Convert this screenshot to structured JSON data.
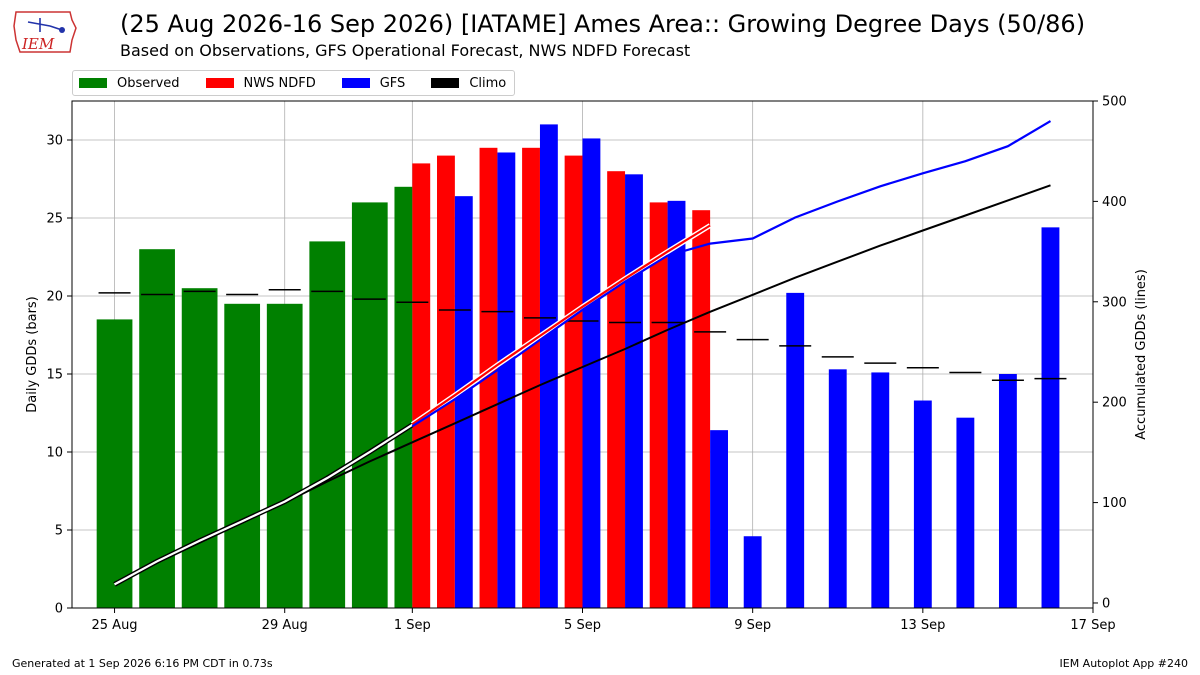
{
  "header": {
    "logo_text": "IEM",
    "title": "(25 Aug 2026-16 Sep 2026) [IATAME] Ames Area:: Growing Degree Days (50/86)",
    "subtitle": "Based on Observations, GFS Operational Forecast, NWS NDFD Forecast"
  },
  "footer": {
    "generated": "Generated at 1 Sep 2026 6:16 PM CDT in 0.73s",
    "app": "IEM Autoplot App #240"
  },
  "colors": {
    "observed": "#008000",
    "ndfd": "#ff0000",
    "gfs": "#0000ff",
    "climo": "#000000",
    "grid": "#b0b0b0"
  },
  "legend": [
    {
      "label": "Observed",
      "color": "#008000"
    },
    {
      "label": "NWS NDFD",
      "color": "#ff0000"
    },
    {
      "label": "GFS",
      "color": "#0000ff"
    },
    {
      "label": "Climo",
      "color": "#000000"
    }
  ],
  "chart_data": {
    "type": "bar",
    "title": "(25 Aug 2026-16 Sep 2026) [IATAME] Ames Area:: Growing Degree Days (50/86)",
    "subtitle": "Based on Observations, GFS Operational Forecast, NWS NDFD Forecast",
    "ylabel": "Daily GDDs (bars)",
    "y2label": "Accumulated GDDs (lines)",
    "ylim": [
      0,
      32.5
    ],
    "y2lim": [
      -5,
      500
    ],
    "yticks": [
      0,
      5,
      10,
      15,
      20,
      25,
      30
    ],
    "y2ticks": [
      0,
      100,
      200,
      300,
      400,
      500
    ],
    "xticks": [
      {
        "date": "2026-08-25",
        "label": "25 Aug"
      },
      {
        "date": "2026-08-29",
        "label": "29 Aug"
      },
      {
        "date": "2026-09-01",
        "label": "1 Sep"
      },
      {
        "date": "2026-09-05",
        "label": "5 Sep"
      },
      {
        "date": "2026-09-09",
        "label": "9 Sep"
      },
      {
        "date": "2026-09-13",
        "label": "13 Sep"
      },
      {
        "date": "2026-09-17",
        "label": "17 Sep"
      }
    ],
    "xlim": [
      "2026-08-24",
      "2026-09-17"
    ],
    "grid": true,
    "legend_position": "top-left",
    "observed": [
      {
        "date": "2026-08-25",
        "value": 18.5
      },
      {
        "date": "2026-08-26",
        "value": 23.0
      },
      {
        "date": "2026-08-27",
        "value": 20.5
      },
      {
        "date": "2026-08-28",
        "value": 19.5
      },
      {
        "date": "2026-08-29",
        "value": 19.5
      },
      {
        "date": "2026-08-30",
        "value": 23.5
      },
      {
        "date": "2026-08-31",
        "value": 26.0
      },
      {
        "date": "2026-09-01",
        "value": 27.0
      }
    ],
    "ndfd": [
      {
        "date": "2026-09-01",
        "value": 28.5
      },
      {
        "date": "2026-09-02",
        "value": 29.0
      },
      {
        "date": "2026-09-03",
        "value": 29.5
      },
      {
        "date": "2026-09-04",
        "value": 29.5
      },
      {
        "date": "2026-09-05",
        "value": 29.0
      },
      {
        "date": "2026-09-06",
        "value": 28.0
      },
      {
        "date": "2026-09-07",
        "value": 26.0
      },
      {
        "date": "2026-09-08",
        "value": 25.5
      }
    ],
    "gfs": [
      {
        "date": "2026-09-02",
        "value": 26.4
      },
      {
        "date": "2026-09-03",
        "value": 29.2
      },
      {
        "date": "2026-09-04",
        "value": 31.0
      },
      {
        "date": "2026-09-05",
        "value": 30.1
      },
      {
        "date": "2026-09-06",
        "value": 27.8
      },
      {
        "date": "2026-09-07",
        "value": 26.1
      },
      {
        "date": "2026-09-08",
        "value": 11.4
      },
      {
        "date": "2026-09-09",
        "value": 4.6
      },
      {
        "date": "2026-09-10",
        "value": 20.2
      },
      {
        "date": "2026-09-11",
        "value": 15.3
      },
      {
        "date": "2026-09-12",
        "value": 15.1
      },
      {
        "date": "2026-09-13",
        "value": 13.3
      },
      {
        "date": "2026-09-14",
        "value": 12.2
      },
      {
        "date": "2026-09-15",
        "value": 15.0
      },
      {
        "date": "2026-09-16",
        "value": 24.4
      }
    ],
    "climo_daily": [
      {
        "date": "2026-08-25",
        "value": 20.2
      },
      {
        "date": "2026-08-26",
        "value": 20.1
      },
      {
        "date": "2026-08-27",
        "value": 20.3
      },
      {
        "date": "2026-08-28",
        "value": 20.1
      },
      {
        "date": "2026-08-29",
        "value": 20.4
      },
      {
        "date": "2026-08-30",
        "value": 20.3
      },
      {
        "date": "2026-08-31",
        "value": 19.8
      },
      {
        "date": "2026-09-01",
        "value": 19.6
      },
      {
        "date": "2026-09-02",
        "value": 19.1
      },
      {
        "date": "2026-09-03",
        "value": 19.0
      },
      {
        "date": "2026-09-04",
        "value": 18.6
      },
      {
        "date": "2026-09-05",
        "value": 18.4
      },
      {
        "date": "2026-09-06",
        "value": 18.3
      },
      {
        "date": "2026-09-07",
        "value": 18.3
      },
      {
        "date": "2026-09-08",
        "value": 17.7
      },
      {
        "date": "2026-09-09",
        "value": 17.2
      },
      {
        "date": "2026-09-10",
        "value": 16.8
      },
      {
        "date": "2026-09-11",
        "value": 16.1
      },
      {
        "date": "2026-09-12",
        "value": 15.7
      },
      {
        "date": "2026-09-13",
        "value": 15.4
      },
      {
        "date": "2026-09-14",
        "value": 15.1
      },
      {
        "date": "2026-09-15",
        "value": 14.6
      },
      {
        "date": "2026-09-16",
        "value": 14.7
      }
    ],
    "observed_accum": [
      {
        "date": "2026-08-25",
        "value": 18.5
      },
      {
        "date": "2026-08-26",
        "value": 41.5
      },
      {
        "date": "2026-08-27",
        "value": 62
      },
      {
        "date": "2026-08-28",
        "value": 81.5
      },
      {
        "date": "2026-08-29",
        "value": 101
      },
      {
        "date": "2026-08-30",
        "value": 124.5
      },
      {
        "date": "2026-08-31",
        "value": 150.5
      },
      {
        "date": "2026-09-01",
        "value": 177.5
      }
    ],
    "ndfd_accum": [
      {
        "date": "2026-09-01",
        "value": 178
      },
      {
        "date": "2026-09-02",
        "value": 207
      },
      {
        "date": "2026-09-03",
        "value": 237
      },
      {
        "date": "2026-09-04",
        "value": 266
      },
      {
        "date": "2026-09-05",
        "value": 295
      },
      {
        "date": "2026-09-06",
        "value": 323
      },
      {
        "date": "2026-09-07",
        "value": 350
      },
      {
        "date": "2026-09-08",
        "value": 376
      }
    ],
    "gfs_accum": [
      {
        "date": "2026-09-01",
        "value": 176
      },
      {
        "date": "2026-09-02",
        "value": 203
      },
      {
        "date": "2026-09-03",
        "value": 232
      },
      {
        "date": "2026-09-04",
        "value": 262
      },
      {
        "date": "2026-09-05",
        "value": 292
      },
      {
        "date": "2026-09-06",
        "value": 320
      },
      {
        "date": "2026-09-07",
        "value": 346
      },
      {
        "date": "2026-09-08",
        "value": 358
      },
      {
        "date": "2026-09-09",
        "value": 363
      },
      {
        "date": "2026-09-10",
        "value": 384
      },
      {
        "date": "2026-09-11",
        "value": 400
      },
      {
        "date": "2026-09-12",
        "value": 415
      },
      {
        "date": "2026-09-13",
        "value": 428
      },
      {
        "date": "2026-09-14",
        "value": 440
      },
      {
        "date": "2026-09-15",
        "value": 455
      },
      {
        "date": "2026-09-16",
        "value": 480
      }
    ],
    "climo_accum": [
      {
        "date": "2026-08-25",
        "value": 20
      },
      {
        "date": "2026-08-26",
        "value": 40
      },
      {
        "date": "2026-08-27",
        "value": 60
      },
      {
        "date": "2026-08-28",
        "value": 80
      },
      {
        "date": "2026-08-29",
        "value": 100
      },
      {
        "date": "2026-08-30",
        "value": 121
      },
      {
        "date": "2026-08-31",
        "value": 141
      },
      {
        "date": "2026-09-01",
        "value": 160
      },
      {
        "date": "2026-09-02",
        "value": 179
      },
      {
        "date": "2026-09-03",
        "value": 198
      },
      {
        "date": "2026-09-04",
        "value": 217
      },
      {
        "date": "2026-09-05",
        "value": 235
      },
      {
        "date": "2026-09-06",
        "value": 253
      },
      {
        "date": "2026-09-07",
        "value": 272
      },
      {
        "date": "2026-09-08",
        "value": 290
      },
      {
        "date": "2026-09-09",
        "value": 307
      },
      {
        "date": "2026-09-10",
        "value": 324
      },
      {
        "date": "2026-09-11",
        "value": 340
      },
      {
        "date": "2026-09-12",
        "value": 356
      },
      {
        "date": "2026-09-13",
        "value": 371
      },
      {
        "date": "2026-09-14",
        "value": 386
      },
      {
        "date": "2026-09-15",
        "value": 401
      },
      {
        "date": "2026-09-16",
        "value": 416
      }
    ]
  }
}
